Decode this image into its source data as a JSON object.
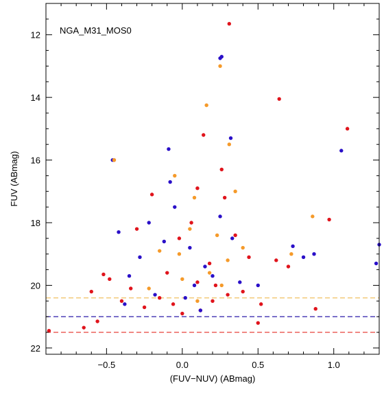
{
  "chart_data": {
    "type": "scatter",
    "title": "",
    "annotation": "NGA_M31_MOS0",
    "xlabel": "(FUV−NUV) (ABmag)",
    "ylabel": "FUV (ABmag)",
    "xlim": [
      -0.9,
      1.3
    ],
    "ylim": [
      22.2,
      11.0
    ],
    "y_inverted": true,
    "grid": false,
    "legend": "none",
    "x_ticks": [
      {
        "value": -0.5,
        "label": "−0.5"
      },
      {
        "value": 0.0,
        "label": "0.0"
      },
      {
        "value": 0.5,
        "label": "0.5"
      },
      {
        "value": 1.0,
        "label": "1.0"
      }
    ],
    "y_ticks": [
      {
        "value": 12,
        "label": "12"
      },
      {
        "value": 14,
        "label": "14"
      },
      {
        "value": 16,
        "label": "16"
      },
      {
        "value": 18,
        "label": "18"
      },
      {
        "value": 20,
        "label": "20"
      },
      {
        "value": 22,
        "label": "22"
      }
    ],
    "limits": [
      {
        "y": 20.4,
        "color": "#f0c060"
      },
      {
        "y": 21.0,
        "color": "#2a1aa8"
      },
      {
        "y": 21.5,
        "color": "#e8403a"
      }
    ],
    "series": [
      {
        "color": "#e0141c",
        "x": [
          0.31,
          0.64,
          1.09,
          -0.45,
          0.97,
          0.14,
          0.26,
          0.88,
          -0.88,
          -0.65,
          -0.56,
          0.5,
          0.52,
          -0.52,
          -0.3,
          -0.2,
          0.1,
          0.35,
          0.62,
          0.28,
          -0.34,
          -0.06,
          0.2,
          0.4,
          0.7,
          -0.6,
          0.0,
          0.1,
          -0.15,
          0.44,
          -0.4,
          -0.25,
          0.06,
          0.18,
          0.3,
          -0.48,
          -0.1,
          0.22,
          -0.02,
          0.12
        ],
        "y": [
          11.65,
          14.05,
          15.0,
          16.0,
          17.9,
          15.2,
          16.3,
          20.75,
          21.45,
          21.35,
          21.15,
          21.2,
          20.6,
          19.65,
          18.2,
          17.1,
          16.9,
          18.4,
          19.2,
          17.2,
          20.1,
          20.6,
          20.5,
          20.2,
          19.4,
          20.2,
          20.9,
          19.9,
          20.4,
          19.1,
          20.5,
          20.7,
          18.0,
          19.3,
          20.3,
          19.8,
          19.6,
          20.0,
          18.5,
          20.8
        ]
      },
      {
        "color": "#2a10c8",
        "x": [
          0.26,
          0.25,
          0.32,
          1.05,
          1.3,
          1.28,
          0.87,
          0.8,
          0.73,
          -0.46,
          -0.09,
          -0.08,
          -0.42,
          -0.35,
          -0.22,
          -0.05,
          0.05,
          0.15,
          0.38,
          0.5,
          0.25,
          -0.18,
          0.08,
          -0.28,
          -0.12,
          0.2,
          0.02,
          0.33,
          -0.38,
          0.12
        ],
        "y": [
          12.7,
          12.75,
          15.3,
          15.7,
          18.7,
          19.3,
          19.0,
          19.1,
          18.75,
          16.0,
          15.65,
          16.7,
          18.3,
          19.7,
          18.0,
          17.5,
          18.8,
          19.4,
          19.9,
          20.0,
          17.8,
          20.3,
          20.0,
          19.1,
          18.6,
          19.7,
          20.4,
          18.5,
          20.6,
          20.8
        ]
      },
      {
        "color": "#f59a2a",
        "x": [
          0.25,
          0.16,
          -0.45,
          0.31,
          0.86,
          0.72,
          -0.05,
          0.08,
          0.23,
          0.35,
          -0.15,
          0.05,
          0.3,
          0.18,
          -0.22,
          0.1,
          -0.02,
          0.4,
          0.0,
          0.26
        ],
        "y": [
          13.0,
          14.25,
          16.0,
          15.5,
          17.8,
          19.0,
          16.5,
          17.2,
          18.4,
          17.0,
          18.9,
          18.2,
          19.2,
          19.6,
          20.1,
          20.5,
          19.0,
          18.8,
          19.8,
          20.0
        ]
      }
    ]
  }
}
